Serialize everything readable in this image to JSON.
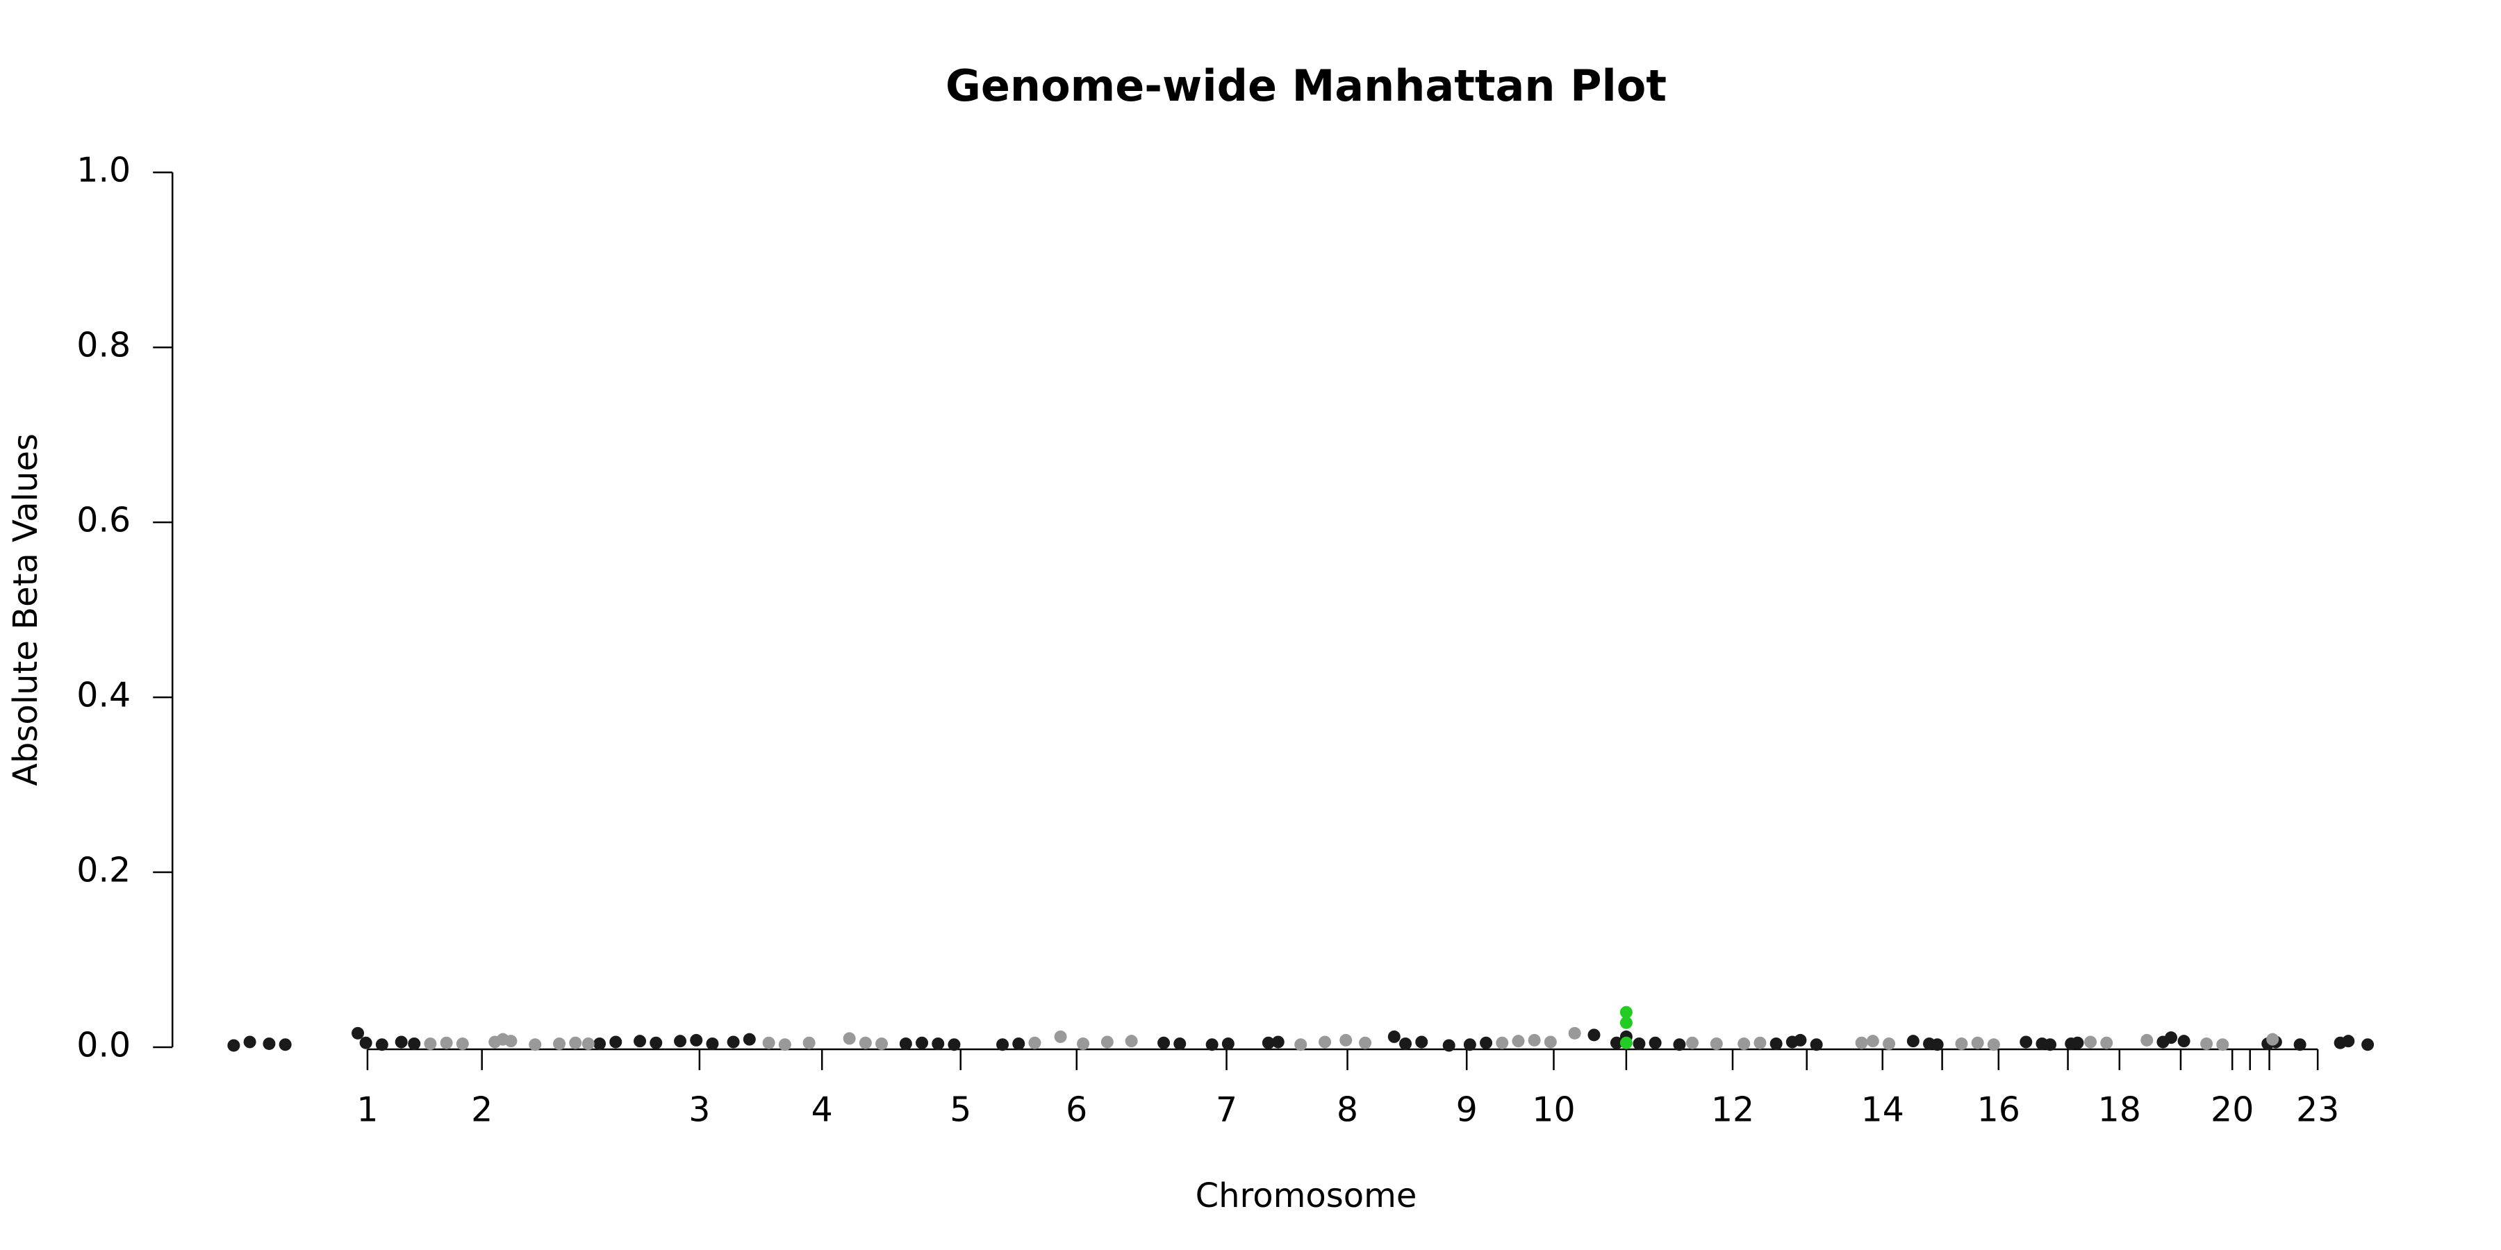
{
  "chart_data": {
    "type": "scatter",
    "title": "Genome-wide Manhattan Plot",
    "x_label": "Chromosome",
    "y_label": "Absolute Beta Values",
    "xlim": [
      0,
      1380
    ],
    "xticks": [
      {
        "value": 121,
        "label": "1"
      },
      {
        "value": 192,
        "label": "2"
      },
      {
        "value": 327,
        "label": "3"
      },
      {
        "value": 403,
        "label": "4"
      },
      {
        "value": 489,
        "label": "5"
      },
      {
        "value": 561,
        "label": "6"
      },
      {
        "value": 654,
        "label": "7"
      },
      {
        "value": 729,
        "label": "8"
      },
      {
        "value": 803,
        "label": "9"
      },
      {
        "value": 857,
        "label": "10"
      },
      {
        "value": 902,
        "label": null
      },
      {
        "value": 968,
        "label": "12"
      },
      {
        "value": 1014,
        "label": null
      },
      {
        "value": 1061,
        "label": "14"
      },
      {
        "value": 1098,
        "label": null
      },
      {
        "value": 1133,
        "label": "16"
      },
      {
        "value": 1176,
        "label": null
      },
      {
        "value": 1208,
        "label": "18"
      },
      {
        "value": 1246,
        "label": null
      },
      {
        "value": 1278,
        "label": "20"
      },
      {
        "value": 1289,
        "label": null
      },
      {
        "value": 1301,
        "label": null
      },
      {
        "value": 1331,
        "label": "23"
      }
    ],
    "ylim": [
      0,
      1
    ],
    "yticks": [
      {
        "value": 0,
        "label": "0.0"
      },
      {
        "value": 0.2,
        "label": "0.2"
      },
      {
        "value": 0.4,
        "label": "0.4"
      },
      {
        "value": 0.6,
        "label": "0.6"
      },
      {
        "value": 0.8,
        "label": "0.8"
      },
      {
        "value": 1,
        "label": "1.0"
      }
    ],
    "series": [
      {
        "color": "#1a1a1a",
        "x": [
          38,
          48,
          60,
          70,
          115,
          120,
          130,
          142,
          150,
          265,
          275,
          290,
          300,
          315,
          325,
          335,
          348,
          358,
          455,
          465,
          475,
          485,
          515,
          525,
          615,
          625,
          645,
          655,
          680,
          686,
          758,
          765,
          775,
          792,
          805,
          815,
          882,
          896,
          902,
          910,
          920,
          935,
          995,
          1005,
          1010,
          1020,
          1080,
          1090,
          1095,
          1150,
          1160,
          1165,
          1178,
          1182,
          1235,
          1240,
          1248,
          1300,
          1305,
          1320,
          1345,
          1350,
          1362
        ],
        "values": [
          0.002,
          0.006,
          0.004,
          0.003,
          0.016,
          0.005,
          0.003,
          0.006,
          0.004,
          0.004,
          0.006,
          0.007,
          0.005,
          0.007,
          0.008,
          0.004,
          0.006,
          0.009,
          0.004,
          0.005,
          0.004,
          0.003,
          0.003,
          0.004,
          0.005,
          0.004,
          0.003,
          0.004,
          0.005,
          0.006,
          0.012,
          0.004,
          0.006,
          0.002,
          0.003,
          0.005,
          0.014,
          0.005,
          0.012,
          0.004,
          0.005,
          0.003,
          0.004,
          0.006,
          0.008,
          0.003,
          0.007,
          0.004,
          0.003,
          0.006,
          0.004,
          0.003,
          0.004,
          0.005,
          0.006,
          0.011,
          0.007,
          0.004,
          0.006,
          0.003,
          0.005,
          0.007,
          0.003
        ]
      },
      {
        "color": "#999999",
        "x": [
          160,
          170,
          180,
          200,
          205,
          210,
          225,
          240,
          250,
          258,
          370,
          380,
          395,
          420,
          430,
          440,
          535,
          551,
          565,
          580,
          595,
          700,
          715,
          728,
          740,
          825,
          835,
          845,
          855,
          870,
          943,
          958,
          975,
          985,
          1048,
          1055,
          1065,
          1110,
          1120,
          1130,
          1190,
          1200,
          1225,
          1262,
          1272,
          1303
        ],
        "values": [
          0.004,
          0.005,
          0.004,
          0.006,
          0.009,
          0.007,
          0.003,
          0.004,
          0.005,
          0.004,
          0.005,
          0.003,
          0.005,
          0.01,
          0.005,
          0.004,
          0.005,
          0.012,
          0.004,
          0.006,
          0.007,
          0.003,
          0.006,
          0.008,
          0.005,
          0.005,
          0.007,
          0.008,
          0.006,
          0.016,
          0.005,
          0.004,
          0.004,
          0.005,
          0.005,
          0.007,
          0.004,
          0.004,
          0.005,
          0.003,
          0.006,
          0.005,
          0.008,
          0.004,
          0.003,
          0.009
        ]
      },
      {
        "color": "#22cc22",
        "x": [
          902,
          902,
          902
        ],
        "values": [
          0.04,
          0.028,
          0.005
        ]
      }
    ]
  }
}
